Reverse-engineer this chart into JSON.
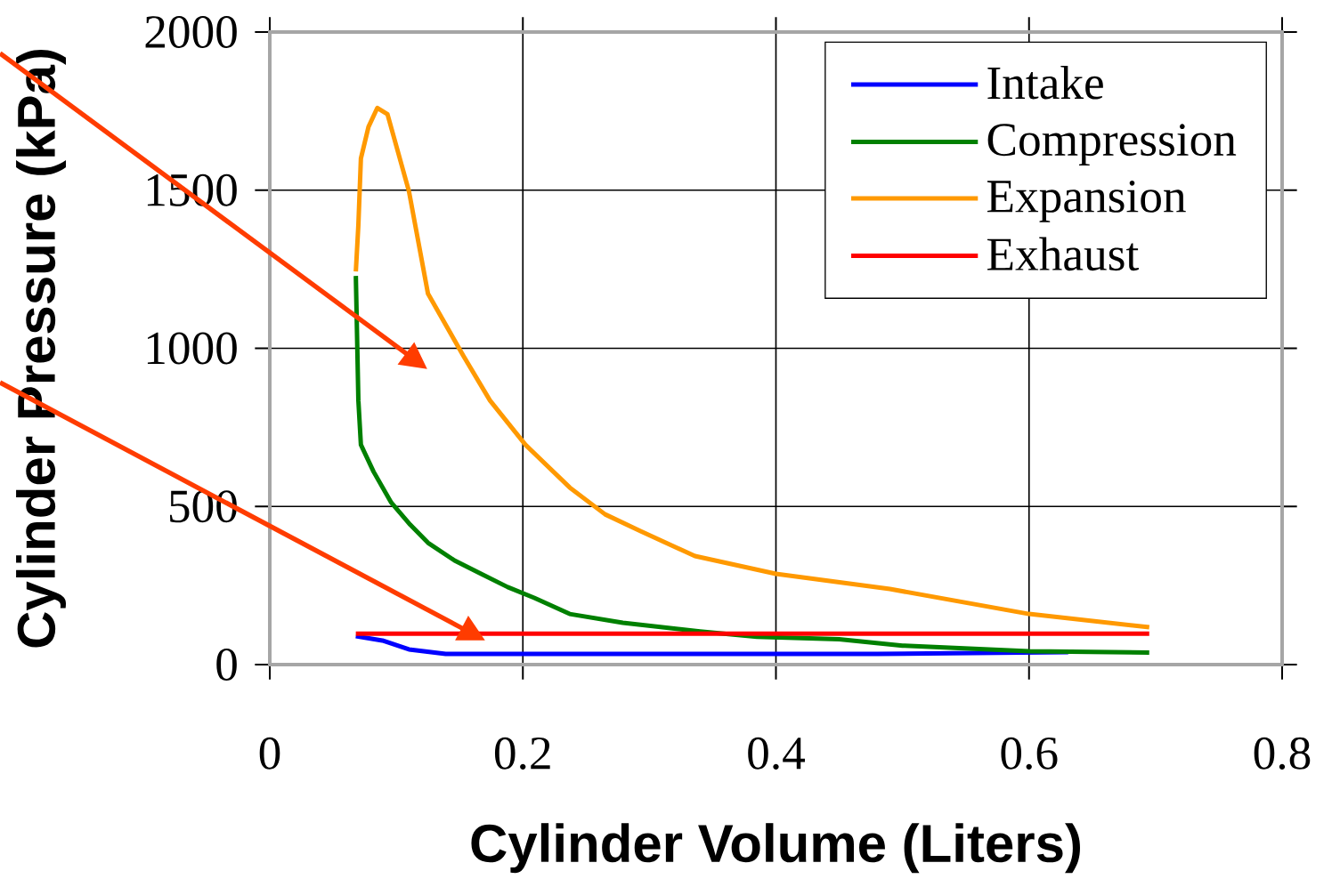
{
  "chart_data": {
    "type": "line",
    "xlabel": "Cylinder Volume (Liters)",
    "ylabel": "Cylinder Pressure (kPa)",
    "xlim": [
      0,
      0.8
    ],
    "ylim": [
      0,
      2000
    ],
    "xticks": [
      0,
      0.2,
      0.4,
      0.6,
      0.8
    ],
    "yticks": [
      0,
      500,
      1000,
      1500,
      2000
    ],
    "grid": true,
    "legend": "top right",
    "line_style": "solid",
    "series": [
      {
        "name": "Intake",
        "color": "#0000ff",
        "x": [
          0.068,
          0.089,
          0.11,
          0.139,
          0.279,
          0.48,
          0.631
        ],
        "values": [
          90,
          76,
          48,
          34,
          34,
          34,
          39
        ]
      },
      {
        "name": "Compression",
        "color": "#008000",
        "x": [
          0.695,
          0.6,
          0.5,
          0.45,
          0.385,
          0.34,
          0.279,
          0.237,
          0.209,
          0.188,
          0.167,
          0.146,
          0.125,
          0.111,
          0.096,
          0.082,
          0.072,
          0.07,
          0.068
        ],
        "values": [
          38,
          42,
          60,
          80,
          88,
          105,
          132,
          160,
          211,
          245,
          287,
          329,
          385,
          442,
          512,
          610,
          695,
          835,
          1229
        ]
      },
      {
        "name": "Expansion",
        "color": "#ff9900",
        "x": [
          0.068,
          0.07,
          0.072,
          0.078,
          0.085,
          0.093,
          0.11,
          0.125,
          0.153,
          0.174,
          0.202,
          0.237,
          0.265,
          0.293,
          0.336,
          0.4,
          0.49,
          0.6,
          0.695
        ],
        "values": [
          1243,
          1390,
          1600,
          1700,
          1760,
          1740,
          1496,
          1173,
          976,
          835,
          695,
          560,
          475,
          422,
          343,
          287,
          239,
          160,
          118
        ]
      },
      {
        "name": "Exhaust",
        "color": "#ff0000",
        "x": [
          0.068,
          0.3,
          0.5,
          0.695
        ],
        "values": [
          98,
          98,
          98,
          98
        ]
      }
    ]
  }
}
